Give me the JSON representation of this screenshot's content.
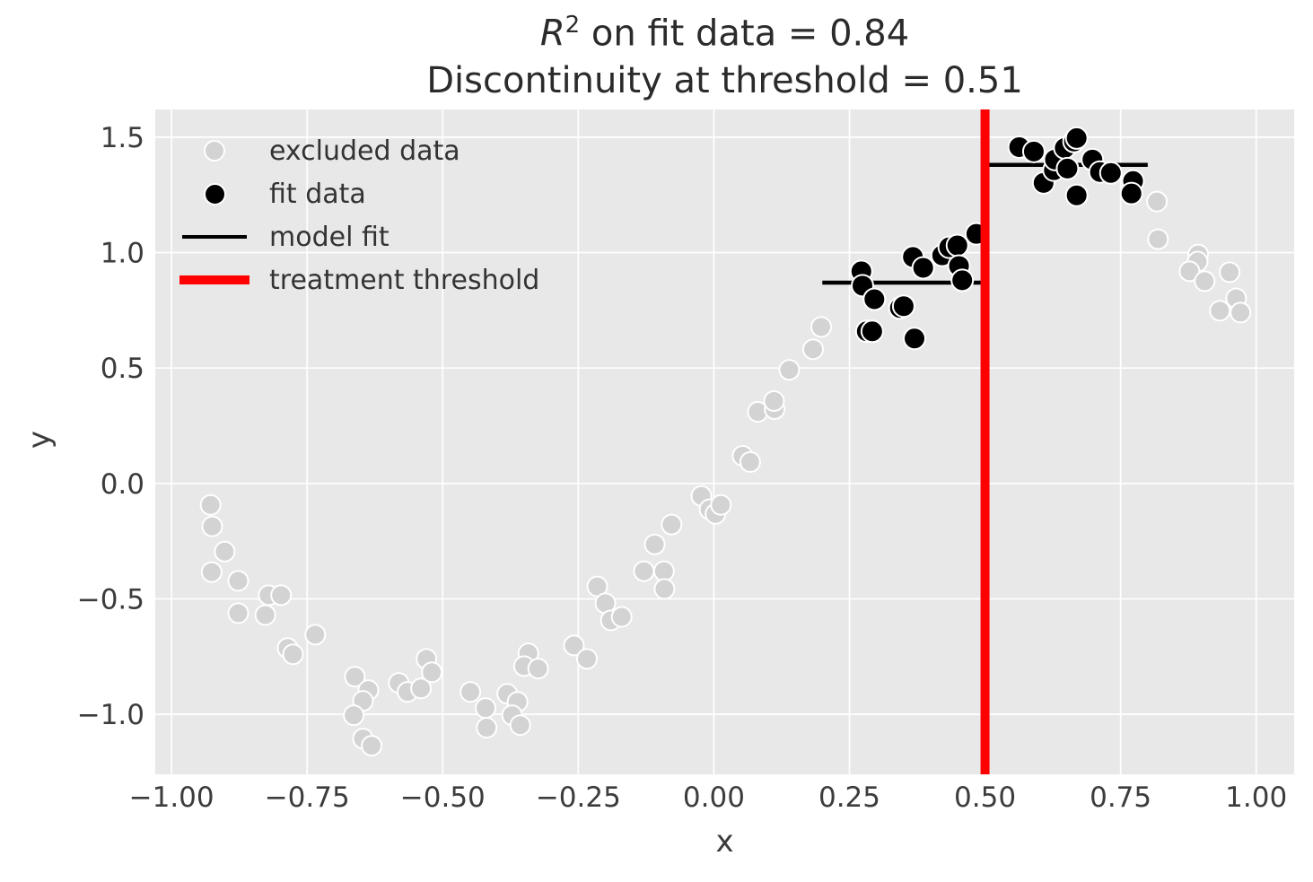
{
  "figure": {
    "background": "#ffffff",
    "plot_background": "#e8e8e8",
    "grid_color": "#ffffff",
    "tick_color": "#3c3c3c",
    "title_color": "#2b2b2b"
  },
  "title": {
    "r_symbol": "R",
    "r_superscript": "2",
    "line1_rest": " on fit data = 0.84",
    "line2": "Discontinuity at threshold = 0.51"
  },
  "axes": {
    "xlabel": "x",
    "ylabel": "y",
    "xlim": [
      -1.03,
      1.07
    ],
    "ylim": [
      -1.26,
      1.62
    ],
    "xticks": [
      {
        "v": -1.0,
        "label": "−1.00"
      },
      {
        "v": -0.75,
        "label": "−0.75"
      },
      {
        "v": -0.5,
        "label": "−0.50"
      },
      {
        "v": -0.25,
        "label": "−0.25"
      },
      {
        "v": 0.0,
        "label": "0.00"
      },
      {
        "v": 0.25,
        "label": "0.25"
      },
      {
        "v": 0.5,
        "label": "0.50"
      },
      {
        "v": 0.75,
        "label": "0.75"
      },
      {
        "v": 1.0,
        "label": "1.00"
      }
    ],
    "yticks": [
      {
        "v": -1.0,
        "label": "−1.0"
      },
      {
        "v": -0.5,
        "label": "−0.5"
      },
      {
        "v": 0.0,
        "label": "0.0"
      },
      {
        "v": 0.5,
        "label": "0.5"
      },
      {
        "v": 1.0,
        "label": "1.0"
      },
      {
        "v": 1.5,
        "label": "1.5"
      }
    ]
  },
  "legend": {
    "items": [
      {
        "label": "excluded data",
        "marker": "dot",
        "color": "#d3d3d3"
      },
      {
        "label": "fit data",
        "marker": "dot",
        "color": "#000000"
      },
      {
        "label": "model fit",
        "marker": "line",
        "color": "#000000"
      },
      {
        "label": "treatment threshold",
        "marker": "line-thick",
        "color": "#ff0000"
      }
    ]
  },
  "chart_data": {
    "type": "scatter",
    "title": "R^2 on fit data = 0.84\nDiscontinuity at threshold = 0.51",
    "r2_on_fit_data": 0.84,
    "discontinuity_at_threshold": 0.51,
    "threshold_x": 0.5,
    "xlabel": "x",
    "ylabel": "y",
    "xlim": [
      -1.03,
      1.07
    ],
    "ylim": [
      -1.26,
      1.62
    ],
    "grid": true,
    "legend_position": "upper left",
    "series": [
      {
        "name": "excluded data",
        "color": "#d3d3d3",
        "edge_color": "#ffffff",
        "marker_radius": 11,
        "points": [
          [
            -0.928,
            -0.093
          ],
          [
            -0.925,
            -0.186
          ],
          [
            -0.902,
            -0.295
          ],
          [
            -0.926,
            -0.384
          ],
          [
            -0.877,
            -0.422
          ],
          [
            -0.821,
            -0.484
          ],
          [
            -0.798,
            -0.484
          ],
          [
            -0.877,
            -0.562
          ],
          [
            -0.827,
            -0.57
          ],
          [
            -0.735,
            -0.655
          ],
          [
            -0.786,
            -0.713
          ],
          [
            -0.776,
            -0.74
          ],
          [
            -0.662,
            -0.837
          ],
          [
            -0.637,
            -0.895
          ],
          [
            -0.647,
            -0.942
          ],
          [
            -0.581,
            -0.864
          ],
          [
            -0.565,
            -0.903
          ],
          [
            -0.54,
            -0.888
          ],
          [
            -0.53,
            -0.76
          ],
          [
            -0.52,
            -0.818
          ],
          [
            -0.664,
            -1.004
          ],
          [
            -0.647,
            -1.105
          ],
          [
            -0.631,
            -1.136
          ],
          [
            -0.449,
            -0.903
          ],
          [
            -0.421,
            -0.973
          ],
          [
            -0.419,
            -1.058
          ],
          [
            -0.381,
            -0.911
          ],
          [
            -0.362,
            -0.946
          ],
          [
            -0.372,
            -1.004
          ],
          [
            -0.357,
            -1.047
          ],
          [
            -0.342,
            -0.736
          ],
          [
            -0.35,
            -0.791
          ],
          [
            -0.324,
            -0.802
          ],
          [
            -0.258,
            -0.702
          ],
          [
            -0.234,
            -0.76
          ],
          [
            -0.215,
            -0.446
          ],
          [
            -0.2,
            -0.519
          ],
          [
            -0.19,
            -0.593
          ],
          [
            -0.17,
            -0.578
          ],
          [
            -0.129,
            -0.38
          ],
          [
            -0.092,
            -0.38
          ],
          [
            -0.091,
            -0.457
          ],
          [
            -0.109,
            -0.264
          ],
          [
            -0.078,
            -0.178
          ],
          [
            -0.023,
            -0.054
          ],
          [
            -0.008,
            -0.112
          ],
          [
            0.003,
            -0.132
          ],
          [
            0.013,
            -0.093
          ],
          [
            0.053,
            0.12
          ],
          [
            0.067,
            0.093
          ],
          [
            0.081,
            0.31
          ],
          [
            0.112,
            0.322
          ],
          [
            0.111,
            0.357
          ],
          [
            0.139,
            0.492
          ],
          [
            0.183,
            0.581
          ],
          [
            0.198,
            0.678
          ],
          [
            0.817,
            1.221
          ],
          [
            0.819,
            1.058
          ],
          [
            0.893,
            0.992
          ],
          [
            0.892,
            0.961
          ],
          [
            0.877,
            0.919
          ],
          [
            0.905,
            0.876
          ],
          [
            0.951,
            0.915
          ],
          [
            0.963,
            0.802
          ],
          [
            0.933,
            0.748
          ],
          [
            0.971,
            0.74
          ]
        ]
      },
      {
        "name": "fit data",
        "color": "#000000",
        "edge_color": "#ffffff",
        "marker_radius": 12,
        "points": [
          [
            0.272,
            0.919
          ],
          [
            0.274,
            0.857
          ],
          [
            0.296,
            0.798
          ],
          [
            0.282,
            0.659
          ],
          [
            0.292,
            0.659
          ],
          [
            0.343,
            0.76
          ],
          [
            0.35,
            0.768
          ],
          [
            0.37,
            0.628
          ],
          [
            0.367,
            0.981
          ],
          [
            0.386,
            0.934
          ],
          [
            0.421,
            0.988
          ],
          [
            0.434,
            1.023
          ],
          [
            0.449,
            1.031
          ],
          [
            0.452,
            0.942
          ],
          [
            0.458,
            0.88
          ],
          [
            0.484,
            1.081
          ],
          [
            0.563,
            1.457
          ],
          [
            0.59,
            1.438
          ],
          [
            0.608,
            1.302
          ],
          [
            0.627,
            1.357
          ],
          [
            0.629,
            1.403
          ],
          [
            0.647,
            1.453
          ],
          [
            0.652,
            1.364
          ],
          [
            0.664,
            1.481
          ],
          [
            0.669,
            1.496
          ],
          [
            0.669,
            1.248
          ],
          [
            0.698,
            1.403
          ],
          [
            0.712,
            1.349
          ],
          [
            0.732,
            1.345
          ],
          [
            0.773,
            1.31
          ],
          [
            0.77,
            1.256
          ]
        ]
      }
    ],
    "model_fit_segments": [
      {
        "x1": 0.2,
        "x2": 0.5,
        "y": 0.87
      },
      {
        "x1": 0.5,
        "x2": 0.8,
        "y": 1.38
      }
    ],
    "treatment_threshold": {
      "x": 0.5,
      "color": "#ff0000",
      "line_width": 10
    }
  }
}
